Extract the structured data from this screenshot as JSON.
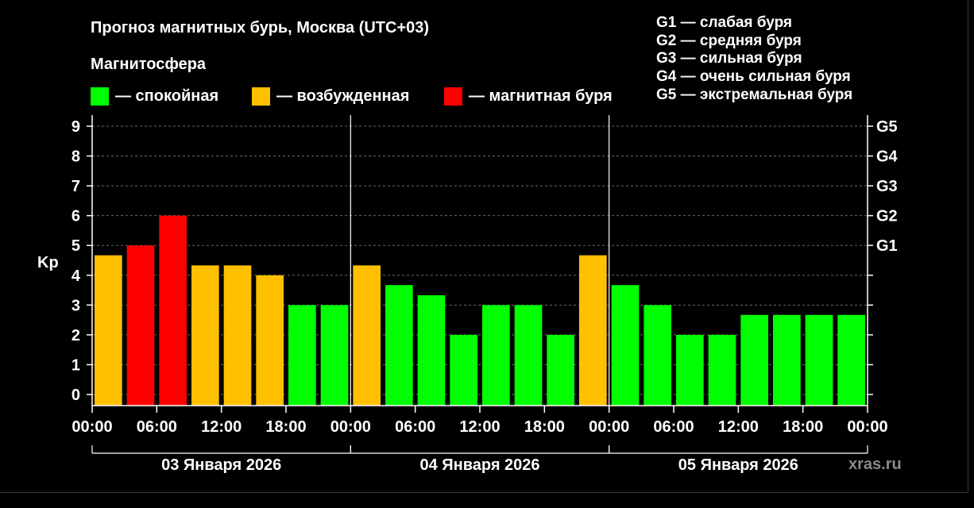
{
  "header": {
    "title": "Прогноз магнитных бурь, Москва (UTC+03)",
    "subtitle": "Магнитосфера"
  },
  "legend": {
    "calm": "— спокойная",
    "excited": "— возбужденная",
    "storm": "— магнитная буря"
  },
  "g_scale": [
    "G1 — слабая буря",
    "G2 — средняя буря",
    "G3 — сильная буря",
    "G4 — очень сильная буря",
    "G5 — экстремальная буря"
  ],
  "credit": "xras.ru",
  "colors": {
    "calm": "#00ff00",
    "excited": "#ffc000",
    "storm": "#ff0000",
    "background": "#000000"
  },
  "chart_data": {
    "type": "bar",
    "ylabel": "Kp",
    "ylim": [
      0,
      9
    ],
    "y_ticks": [
      "0",
      "1",
      "2",
      "3",
      "4",
      "5",
      "6",
      "7",
      "8",
      "9"
    ],
    "right_ticks": [
      {
        "value": 5,
        "label": "G1"
      },
      {
        "value": 6,
        "label": "G2"
      },
      {
        "value": 7,
        "label": "G3"
      },
      {
        "value": 8,
        "label": "G4"
      },
      {
        "value": 9,
        "label": "G5"
      }
    ],
    "x_tick_labels": [
      "00:00",
      "06:00",
      "12:00",
      "18:00",
      "00:00",
      "06:00",
      "12:00",
      "18:00",
      "00:00",
      "06:00",
      "12:00",
      "18:00",
      "00:00"
    ],
    "days": [
      "03 Января 2026",
      "04 Января 2026",
      "05 Января 2026"
    ],
    "interval_hours": 3,
    "grid": "horizontal dashed",
    "values": [
      4.67,
      5.0,
      6.0,
      4.33,
      4.33,
      4.0,
      3.0,
      3.0,
      4.33,
      3.67,
      3.33,
      2.0,
      3.0,
      3.0,
      2.0,
      4.67,
      3.67,
      3.0,
      2.0,
      2.0,
      2.67,
      2.67,
      2.67,
      2.67
    ],
    "levels": [
      "excited",
      "storm",
      "storm",
      "excited",
      "excited",
      "excited",
      "calm",
      "calm",
      "excited",
      "calm",
      "calm",
      "calm",
      "calm",
      "calm",
      "calm",
      "excited",
      "calm",
      "calm",
      "calm",
      "calm",
      "calm",
      "calm",
      "calm",
      "calm"
    ]
  }
}
